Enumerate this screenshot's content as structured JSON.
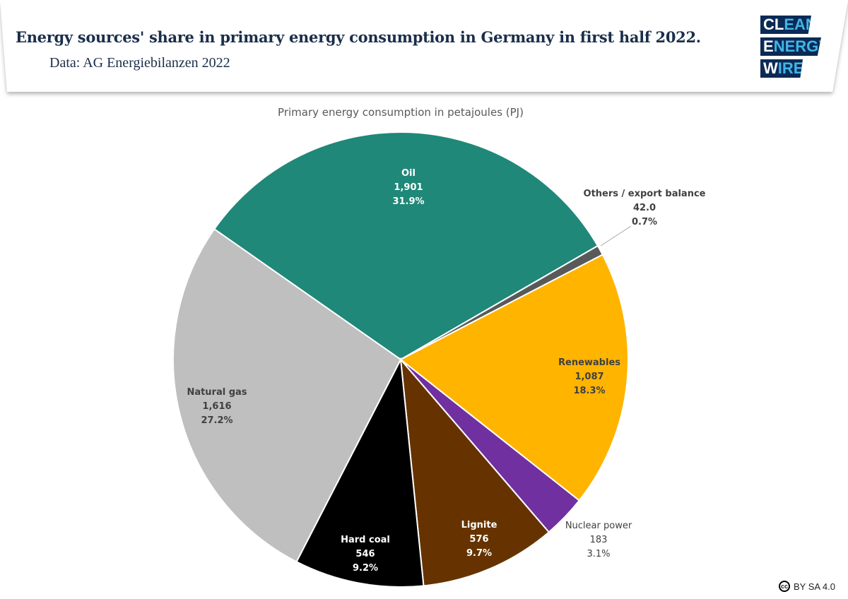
{
  "header": {
    "title": "Energy sources' share in primary energy consumption in Germany in first half 2022.",
    "subtitle": "Data: AG Energiebilanzen 2022",
    "logo": {
      "line1": "CLEAN",
      "line2": "ENERGY",
      "line3": "WIRE"
    }
  },
  "license": {
    "icon": "cc-icon",
    "text": "BY SA 4.0"
  },
  "chart_data": {
    "type": "pie",
    "title": "Primary energy consumption in petajoules (PJ)",
    "start_angle_deg": -55,
    "slices": [
      {
        "name": "Oil",
        "value": 1901,
        "value_label": "1,901",
        "percent": "31.9%",
        "color": "#1f8878"
      },
      {
        "name": "Others / export balance",
        "value": 42.0,
        "value_label": "42.0",
        "percent": "0.7%",
        "color": "#595959"
      },
      {
        "name": "Renewables",
        "value": 1087,
        "value_label": "1,087",
        "percent": "18.3%",
        "color": "#ffb400"
      },
      {
        "name": "Nuclear power",
        "value": 183,
        "value_label": "183",
        "percent": "3.1%",
        "color": "#7030a0"
      },
      {
        "name": "Lignite",
        "value": 576,
        "value_label": "576",
        "percent": "9.7%",
        "color": "#663300"
      },
      {
        "name": "Hard coal",
        "value": 546,
        "value_label": "546",
        "percent": "9.2%",
        "color": "#000000"
      },
      {
        "name": "Natural gas",
        "value": 1616,
        "value_label": "1,616",
        "percent": "27.2%",
        "color": "#bfbfbf"
      }
    ]
  }
}
